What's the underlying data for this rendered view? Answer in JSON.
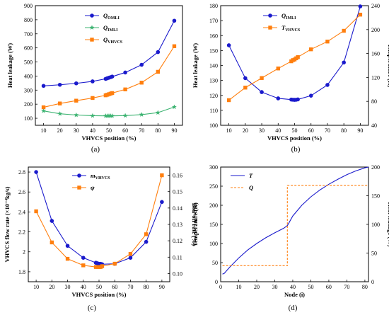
{
  "chart_data": [
    {
      "type": "line",
      "panel_label": "(a)",
      "xlabel": "VHVCS position (%)",
      "ylabel": "Heat leakage (W)",
      "xlim": [
        5,
        95
      ],
      "ylim": [
        50,
        900
      ],
      "xticks": [
        10,
        20,
        30,
        40,
        50,
        60,
        70,
        80,
        90
      ],
      "yticks": [
        100,
        200,
        300,
        400,
        500,
        600,
        700,
        800,
        900
      ],
      "grid": false,
      "legend_position": "top-left",
      "series": [
        {
          "name": "Q",
          "subscript": "OMLI",
          "color": "#1a1acc",
          "marker": "circle",
          "x": [
            10,
            20,
            30,
            40,
            48,
            49,
            50,
            51,
            52,
            60,
            70,
            80,
            90
          ],
          "y": [
            330,
            338,
            348,
            362,
            380,
            384,
            388,
            392,
            396,
            425,
            480,
            570,
            793
          ]
        },
        {
          "name": "Q",
          "subscript": "IMLI",
          "color": "#3cb371",
          "marker": "star",
          "x": [
            10,
            20,
            30,
            40,
            48,
            49,
            50,
            51,
            52,
            60,
            70,
            80,
            90
          ],
          "y": [
            152,
            132,
            123,
            118,
            117,
            117,
            117,
            117,
            117,
            119,
            126,
            140,
            180
          ]
        },
        {
          "name": "Q",
          "subscript": "VHVCS",
          "color": "#ff7f0e",
          "marker": "square",
          "x": [
            10,
            20,
            30,
            40,
            48,
            49,
            50,
            51,
            52,
            60,
            70,
            80,
            90
          ],
          "y": [
            178,
            205,
            225,
            244,
            263,
            267,
            271,
            275,
            279,
            305,
            353,
            430,
            612
          ]
        }
      ]
    },
    {
      "type": "line",
      "panel_label": "(b)",
      "xlabel": "VHVCS position (%)",
      "ylabel": "Heat leakage (W)",
      "y2label": "Temperature (K)",
      "xlim": [
        5,
        95
      ],
      "ylim": [
        100,
        180
      ],
      "y2lim": [
        40,
        240
      ],
      "xticks": [
        10,
        20,
        30,
        40,
        50,
        60,
        70,
        80,
        90
      ],
      "yticks": [
        100,
        110,
        120,
        130,
        140,
        150,
        160,
        170,
        180
      ],
      "y2ticks": [
        40,
        80,
        120,
        160,
        200,
        240
      ],
      "grid": false,
      "legend_position": "top-left",
      "series": [
        {
          "name": "Q",
          "subscript": "IMLI",
          "axis": "left",
          "color": "#1a1acc",
          "marker": "circle",
          "x": [
            10,
            20,
            30,
            40,
            48,
            49,
            50,
            51,
            52,
            60,
            70,
            80,
            90
          ],
          "y": [
            153.5,
            131.5,
            122.2,
            118.0,
            117.2,
            117.1,
            117.0,
            117.1,
            117.3,
            119.8,
            127.0,
            142.0,
            179.5
          ]
        },
        {
          "name": "T",
          "subscript": "VHVCS",
          "axis": "right",
          "color": "#ff7f0e",
          "marker": "square",
          "x": [
            10,
            20,
            30,
            40,
            48,
            49,
            50,
            51,
            52,
            60,
            70,
            80,
            90
          ],
          "y": [
            82,
            103,
            119,
            135,
            147,
            149,
            150,
            152,
            154,
            167,
            180,
            198,
            225
          ]
        }
      ]
    },
    {
      "type": "line",
      "panel_label": "(c)",
      "xlabel": "VHVCS position (%)",
      "ylabel": "VHVCS flow rate (×10⁻⁴kg/s)",
      "y2label": "Boil-off rate (%)",
      "xlim": [
        5,
        95
      ],
      "ylim": [
        1.7,
        2.85
      ],
      "y2lim": [
        0.095,
        0.165
      ],
      "xticks": [
        10,
        20,
        30,
        40,
        50,
        60,
        70,
        80,
        90
      ],
      "yticks": [
        1.8,
        2.0,
        2.2,
        2.4,
        2.6,
        2.8
      ],
      "y2ticks": [
        0.1,
        0.11,
        0.12,
        0.13,
        0.14,
        0.15,
        0.16
      ],
      "grid": false,
      "legend_position": "top-center",
      "series": [
        {
          "name": "m",
          "subscript": "VHVCS",
          "axis": "left",
          "color": "#1a1acc",
          "marker": "circle",
          "x": [
            10,
            20,
            30,
            40,
            48,
            49,
            50,
            51,
            52,
            60,
            70,
            80,
            90
          ],
          "y": [
            2.8,
            2.31,
            2.06,
            1.94,
            1.89,
            1.885,
            1.88,
            1.88,
            1.875,
            1.88,
            1.94,
            2.1,
            2.5
          ]
        },
        {
          "name": "ψ",
          "subscript": "",
          "axis": "right",
          "color": "#ff7f0e",
          "marker": "square",
          "x": [
            10,
            20,
            30,
            40,
            48,
            49,
            50,
            51,
            52,
            60,
            70,
            80,
            90
          ],
          "y": [
            0.138,
            0.119,
            0.109,
            0.105,
            0.104,
            0.104,
            0.104,
            0.104,
            0.1045,
            0.106,
            0.112,
            0.124,
            0.16
          ]
        }
      ]
    },
    {
      "type": "line",
      "panel_label": "(d)",
      "xlabel": "Node (i)",
      "ylabel": "Temperature (K)",
      "y2label": "Heat leakage (W)",
      "xlim": [
        0,
        82
      ],
      "ylim": [
        0,
        300
      ],
      "y2lim": [
        0,
        200
      ],
      "xticks": [
        0,
        10,
        20,
        30,
        40,
        50,
        60,
        70,
        80
      ],
      "yticks": [
        0,
        50,
        100,
        150,
        200,
        250,
        300
      ],
      "y2ticks": [
        0,
        50,
        100,
        150,
        200
      ],
      "grid": false,
      "legend_position": "top-left",
      "series": [
        {
          "name": "T",
          "axis": "left",
          "color": "#1a1acc",
          "style": "solid",
          "x": [
            1,
            2,
            5,
            10,
            15,
            20,
            25,
            30,
            35,
            37,
            38,
            40,
            45,
            50,
            55,
            60,
            65,
            70,
            75,
            80,
            82
          ],
          "y": [
            20,
            22,
            38,
            62,
            83,
            100,
            115,
            128,
            140,
            147,
            155,
            172,
            200,
            222,
            240,
            255,
            268,
            280,
            290,
            298,
            300
          ]
        },
        {
          "name": "Q",
          "axis": "right",
          "color": "#ff7f0e",
          "style": "dashed",
          "x": [
            1,
            37,
            37,
            82
          ],
          "y": [
            28,
            28,
            168,
            168
          ]
        }
      ]
    }
  ]
}
